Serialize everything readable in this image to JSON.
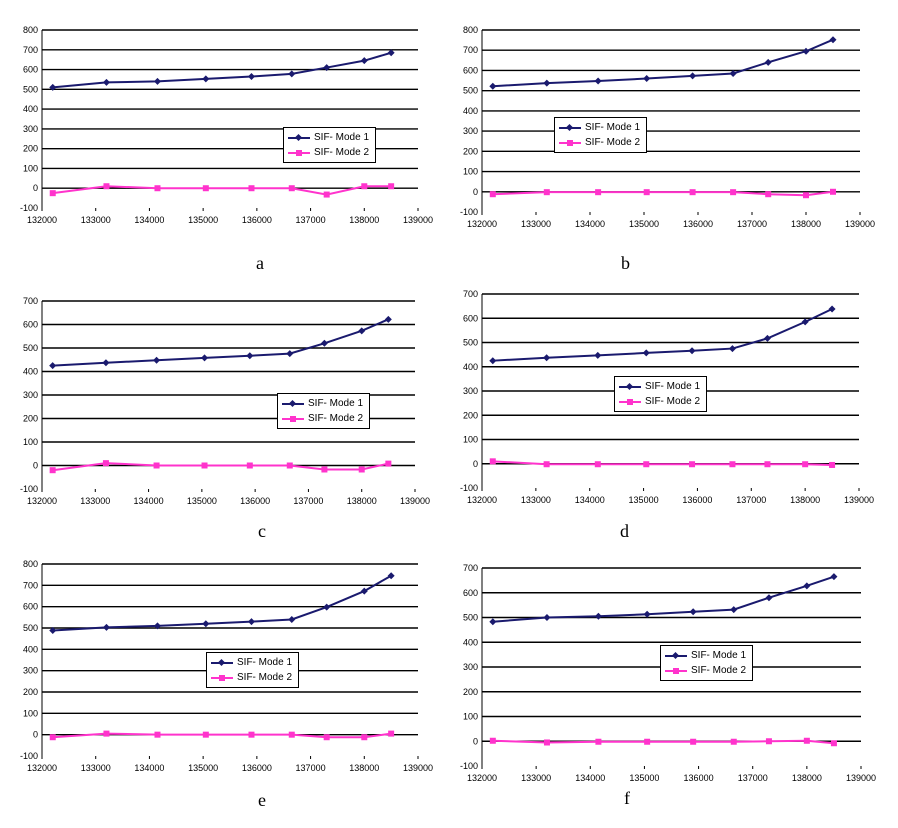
{
  "chart_data": [
    {
      "type": "line",
      "panel": "a",
      "title": "",
      "xlabel": "",
      "ylabel": "",
      "xlim": [
        132000,
        139000
      ],
      "ylim": [
        -100,
        800
      ],
      "xticks": [
        "132000",
        "133000",
        "134000",
        "135000",
        "136000",
        "137000",
        "138000",
        "139000"
      ],
      "yticks": [
        "-100",
        "0",
        "100",
        "200",
        "300",
        "400",
        "500",
        "600",
        "700",
        "800"
      ],
      "grid": "horizontal",
      "legend_position": "right-center",
      "x": [
        132200,
        133200,
        134150,
        135050,
        135900,
        136650,
        137300,
        138000,
        138500
      ],
      "series": [
        {
          "name": "SIF- Mode 1",
          "values": [
            510,
            535,
            540,
            553,
            565,
            578,
            610,
            645,
            685
          ]
        },
        {
          "name": "SIF- Mode 2",
          "values": [
            -25,
            10,
            0,
            0,
            0,
            0,
            -32,
            10,
            10
          ]
        }
      ]
    },
    {
      "type": "line",
      "panel": "b",
      "title": "",
      "xlabel": "",
      "ylabel": "",
      "xlim": [
        132000,
        139000
      ],
      "ylim": [
        -100,
        800
      ],
      "xticks": [
        "132000",
        "133000",
        "134000",
        "135000",
        "136000",
        "137000",
        "138000",
        "139000"
      ],
      "yticks": [
        "-100",
        "0",
        "100",
        "200",
        "300",
        "400",
        "500",
        "600",
        "700",
        "800"
      ],
      "grid": "horizontal",
      "legend_position": "center",
      "x": [
        132200,
        133200,
        134150,
        135050,
        135900,
        136650,
        137300,
        138000,
        138500
      ],
      "series": [
        {
          "name": "SIF- Mode 1",
          "values": [
            522,
            537,
            548,
            560,
            573,
            585,
            640,
            695,
            752
          ]
        },
        {
          "name": "SIF- Mode 2",
          "values": [
            -12,
            -2,
            -2,
            -2,
            -2,
            -2,
            -12,
            -17,
            0
          ]
        }
      ]
    },
    {
      "type": "line",
      "panel": "c",
      "title": "",
      "xlabel": "",
      "ylabel": "",
      "xlim": [
        132000,
        139000
      ],
      "ylim": [
        -100,
        700
      ],
      "xticks": [
        "132000",
        "133000",
        "134000",
        "135000",
        "136000",
        "137000",
        "138000",
        "139000"
      ],
      "yticks": [
        "-100",
        "0",
        "100",
        "200",
        "300",
        "400",
        "500",
        "600",
        "700"
      ],
      "grid": "horizontal",
      "legend_position": "right-center",
      "x": [
        132200,
        133200,
        134150,
        135050,
        135900,
        136650,
        137300,
        138000,
        138500
      ],
      "series": [
        {
          "name": "SIF- Mode 1",
          "values": [
            425,
            437,
            448,
            458,
            467,
            476,
            520,
            573,
            622
          ]
        },
        {
          "name": "SIF- Mode 2",
          "values": [
            -20,
            10,
            0,
            0,
            0,
            0,
            -17,
            -17,
            8
          ]
        }
      ]
    },
    {
      "type": "line",
      "panel": "d",
      "title": "",
      "xlabel": "",
      "ylabel": "",
      "xlim": [
        132000,
        139000
      ],
      "ylim": [
        -100,
        700
      ],
      "xticks": [
        "132000",
        "133000",
        "134000",
        "135000",
        "136000",
        "137000",
        "138000",
        "139000"
      ],
      "yticks": [
        "-100",
        "0",
        "100",
        "200",
        "300",
        "400",
        "500",
        "600",
        "700"
      ],
      "grid": "horizontal",
      "legend_position": "center",
      "x": [
        132200,
        133200,
        134150,
        135050,
        135900,
        136650,
        137300,
        138000,
        138500
      ],
      "series": [
        {
          "name": "SIF- Mode 1",
          "values": [
            425,
            437,
            447,
            457,
            466,
            475,
            517,
            585,
            638
          ]
        },
        {
          "name": "SIF- Mode 2",
          "values": [
            10,
            -2,
            -2,
            -2,
            -2,
            -2,
            -2,
            -2,
            -5
          ]
        }
      ]
    },
    {
      "type": "line",
      "panel": "e",
      "title": "",
      "xlabel": "",
      "ylabel": "",
      "xlim": [
        132000,
        139000
      ],
      "ylim": [
        -100,
        800
      ],
      "xticks": [
        "132000",
        "133000",
        "134000",
        "135000",
        "136000",
        "137000",
        "138000",
        "139000"
      ],
      "yticks": [
        "-100",
        "0",
        "100",
        "200",
        "300",
        "400",
        "500",
        "600",
        "700",
        "800"
      ],
      "grid": "horizontal",
      "legend_position": "center",
      "x": [
        132200,
        133200,
        134150,
        135050,
        135900,
        136650,
        137300,
        138000,
        138500
      ],
      "series": [
        {
          "name": "SIF- Mode 1",
          "values": [
            488,
            503,
            510,
            520,
            530,
            540,
            598,
            673,
            745
          ]
        },
        {
          "name": "SIF- Mode 2",
          "values": [
            -12,
            5,
            0,
            0,
            0,
            0,
            -12,
            -12,
            5
          ]
        }
      ]
    },
    {
      "type": "line",
      "panel": "f",
      "title": "",
      "xlabel": "",
      "ylabel": "",
      "xlim": [
        132000,
        139000
      ],
      "ylim": [
        -100,
        700
      ],
      "xticks": [
        "132000",
        "133000",
        "134000",
        "135000",
        "136000",
        "137000",
        "138000",
        "139000"
      ],
      "yticks": [
        "-100",
        "0",
        "100",
        "200",
        "300",
        "400",
        "500",
        "600",
        "700"
      ],
      "grid": "horizontal",
      "legend_position": "center",
      "x": [
        132200,
        133200,
        134150,
        135050,
        135900,
        136650,
        137300,
        138000,
        138500
      ],
      "series": [
        {
          "name": "SIF- Mode 1",
          "values": [
            483,
            500,
            505,
            513,
            523,
            532,
            580,
            628,
            665
          ]
        },
        {
          "name": "SIF- Mode 2",
          "values": [
            2,
            -5,
            -2,
            -2,
            -2,
            -2,
            0,
            2,
            -8
          ]
        }
      ]
    }
  ],
  "captions": [
    "a",
    "b",
    "c",
    "d",
    "e",
    "f"
  ],
  "colors": {
    "mode1": "#1a1a6e",
    "mode2": "#ff33cc",
    "grid": "#000000"
  }
}
